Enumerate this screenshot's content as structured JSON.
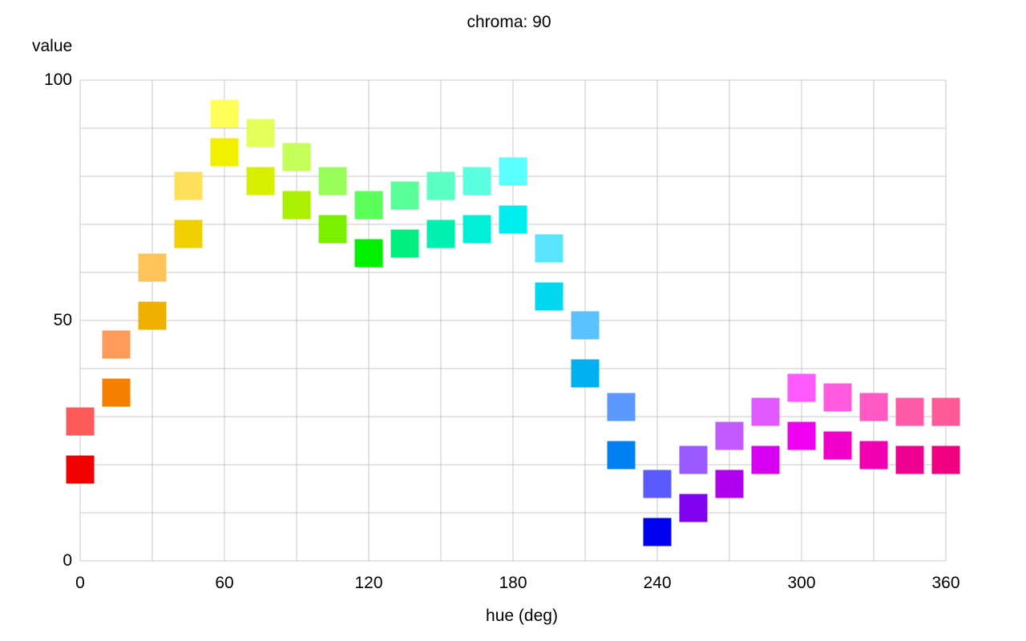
{
  "chart_data": {
    "type": "scatter",
    "title": "chroma: 90",
    "xlabel": "hue (deg)",
    "ylabel": "value",
    "xlim": [
      0,
      360
    ],
    "ylim": [
      0,
      100
    ],
    "x_ticks": [
      "0",
      "60",
      "120",
      "180",
      "240",
      "300",
      "360"
    ],
    "y_ticks": [
      "0",
      "50",
      "100"
    ],
    "grid": true,
    "marker": "square",
    "series": [
      {
        "points": [
          {
            "x": 0,
            "y": 19,
            "color": "#f20000"
          },
          {
            "x": 15,
            "y": 35,
            "color": "#f47f00"
          },
          {
            "x": 30,
            "y": 51,
            "color": "#f0b000"
          },
          {
            "x": 45,
            "y": 68,
            "color": "#f0d000"
          },
          {
            "x": 60,
            "y": 85,
            "color": "#f0f000"
          },
          {
            "x": 75,
            "y": 79,
            "color": "#d7f000"
          },
          {
            "x": 90,
            "y": 74,
            "color": "#aaf000"
          },
          {
            "x": 105,
            "y": 69,
            "color": "#7af000"
          },
          {
            "x": 120,
            "y": 64,
            "color": "#00f000"
          },
          {
            "x": 135,
            "y": 66,
            "color": "#00f080"
          },
          {
            "x": 150,
            "y": 68,
            "color": "#00f0b0"
          },
          {
            "x": 165,
            "y": 69,
            "color": "#00f0d7"
          },
          {
            "x": 180,
            "y": 71,
            "color": "#00eef0"
          },
          {
            "x": 195,
            "y": 55,
            "color": "#00d8f0"
          },
          {
            "x": 210,
            "y": 39,
            "color": "#00b0f0"
          },
          {
            "x": 225,
            "y": 22,
            "color": "#0080f0"
          },
          {
            "x": 240,
            "y": 6,
            "color": "#0000f0"
          },
          {
            "x": 255,
            "y": 11,
            "color": "#8000f0"
          },
          {
            "x": 270,
            "y": 16,
            "color": "#b000f0"
          },
          {
            "x": 285,
            "y": 21,
            "color": "#d700f0"
          },
          {
            "x": 300,
            "y": 26,
            "color": "#f000f0"
          },
          {
            "x": 315,
            "y": 24,
            "color": "#f000c8"
          },
          {
            "x": 330,
            "y": 22,
            "color": "#f000b0"
          },
          {
            "x": 345,
            "y": 21,
            "color": "#f00090"
          },
          {
            "x": 360,
            "y": 21,
            "color": "#f00080"
          }
        ]
      },
      {
        "points": [
          {
            "x": 0,
            "y": 29,
            "color": "#ff5a5a"
          },
          {
            "x": 15,
            "y": 45,
            "color": "#ff9a5a"
          },
          {
            "x": 30,
            "y": 61,
            "color": "#ffc35a"
          },
          {
            "x": 45,
            "y": 78,
            "color": "#ffe05a"
          },
          {
            "x": 60,
            "y": 93,
            "color": "#ffff5a"
          },
          {
            "x": 75,
            "y": 89,
            "color": "#e5ff5a"
          },
          {
            "x": 90,
            "y": 84,
            "color": "#c4ff5a"
          },
          {
            "x": 105,
            "y": 79,
            "color": "#98ff5a"
          },
          {
            "x": 120,
            "y": 74,
            "color": "#5aff5a"
          },
          {
            "x": 135,
            "y": 76,
            "color": "#5aff9a"
          },
          {
            "x": 150,
            "y": 78,
            "color": "#5affc3"
          },
          {
            "x": 165,
            "y": 79,
            "color": "#5affe0"
          },
          {
            "x": 180,
            "y": 81,
            "color": "#5affff"
          },
          {
            "x": 195,
            "y": 65,
            "color": "#5ae5ff"
          },
          {
            "x": 210,
            "y": 49,
            "color": "#5ac3ff"
          },
          {
            "x": 225,
            "y": 32,
            "color": "#5a98ff"
          },
          {
            "x": 240,
            "y": 16,
            "color": "#5a5aff"
          },
          {
            "x": 255,
            "y": 21,
            "color": "#9a5aff"
          },
          {
            "x": 270,
            "y": 26,
            "color": "#c35aff"
          },
          {
            "x": 285,
            "y": 31,
            "color": "#e05aff"
          },
          {
            "x": 300,
            "y": 36,
            "color": "#ff5aff"
          },
          {
            "x": 315,
            "y": 34,
            "color": "#ff5ae0"
          },
          {
            "x": 330,
            "y": 32,
            "color": "#ff5ac3"
          },
          {
            "x": 345,
            "y": 31,
            "color": "#ff5aa8"
          },
          {
            "x": 360,
            "y": 31,
            "color": "#ff5a98"
          }
        ]
      }
    ]
  }
}
